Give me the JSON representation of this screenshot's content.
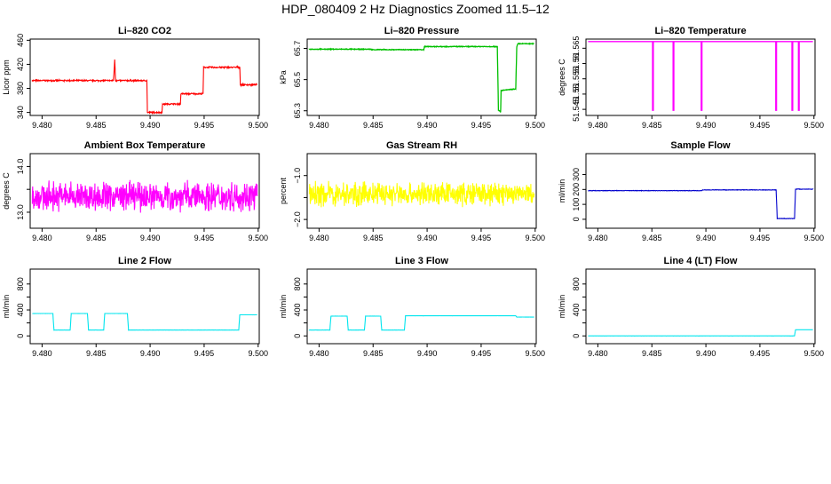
{
  "figure": {
    "title": "HDP_080409  2 Hz Diagnostics Zoomed 11.5–12"
  },
  "colors": {
    "co2": "#ff0000",
    "pressure": "#00c000",
    "temperature": "#ff00ff",
    "ambient": "#ff00ff",
    "rh": "#ffff00",
    "sample_flow": "#0000cd",
    "line_flow": "#00e5ee",
    "axis": "#000000"
  },
  "chart_data": [
    {
      "type": "line",
      "title": "Li–820 CO2",
      "xlabel": "",
      "ylabel": "Licor ppm",
      "xlim": [
        9.4789,
        9.5001
      ],
      "ylim": [
        335,
        462
      ],
      "x_ticks": [
        9.48,
        9.485,
        9.49,
        9.495,
        9.5
      ],
      "x_tick_labels": [
        "9.480",
        "9.485",
        "9.490",
        "9.495",
        "9.500"
      ],
      "y_ticks": [
        340,
        380,
        420,
        460
      ],
      "y_tick_labels": [
        "340",
        "380",
        "420",
        "460"
      ],
      "grid": false,
      "legend": "none",
      "color_key": "co2",
      "series": [
        {
          "x": [
            9.4791,
            9.4866,
            9.48668,
            9.48672,
            9.48676,
            9.4868,
            9.4869,
            9.4897,
            9.48975,
            9.4911,
            9.49115,
            9.4928,
            9.49285,
            9.4949,
            9.49495,
            9.4983,
            9.49835,
            9.4999
          ],
          "y": [
            393,
            393,
            412,
            428,
            412,
            393,
            393,
            393,
            340,
            340,
            354,
            354,
            371,
            371,
            415,
            415,
            386,
            386
          ],
          "noise": 1.5
        }
      ]
    },
    {
      "type": "line",
      "title": "Li–820 Pressure",
      "xlabel": "",
      "ylabel": "kPa",
      "xlim": [
        9.4789,
        9.5001
      ],
      "ylim": [
        65.27,
        65.76
      ],
      "x_ticks": [
        9.48,
        9.485,
        9.49,
        9.495,
        9.5
      ],
      "x_tick_labels": [
        "9.480",
        "9.485",
        "9.490",
        "9.495",
        "9.500"
      ],
      "y_ticks": [
        65.3,
        65.5,
        65.7
      ],
      "y_tick_labels": [
        "65.3",
        "65.5",
        "65.7"
      ],
      "grid": false,
      "legend": "none",
      "color_key": "pressure",
      "series": [
        {
          "x": [
            9.4791,
            9.4848,
            9.4849,
            9.4897,
            9.48975,
            9.4965,
            9.4966,
            9.4967,
            9.4968,
            9.49685,
            9.4982,
            9.4983,
            9.4984,
            9.4999
          ],
          "y": [
            65.695,
            65.695,
            65.692,
            65.692,
            65.712,
            65.712,
            65.3,
            65.3,
            65.29,
            65.43,
            65.44,
            65.71,
            65.73,
            65.73
          ],
          "noise": 0.003
        }
      ]
    },
    {
      "type": "line",
      "title": "Li–820 Temperature",
      "xlabel": "",
      "ylabel": "degrees C",
      "xlim": [
        9.4789,
        9.5001
      ],
      "ylim": [
        51.543,
        51.568
      ],
      "x_ticks": [
        9.48,
        9.485,
        9.49,
        9.495,
        9.5
      ],
      "x_tick_labels": [
        "9.480",
        "9.485",
        "9.490",
        "9.495",
        "9.500"
      ],
      "y_ticks": [
        51.545,
        51.55,
        51.555,
        51.56,
        51.565
      ],
      "y_tick_labels": [
        "51.545",
        "51.55",
        "51.555",
        "51.56",
        "51.565"
      ],
      "grid": false,
      "legend": "none",
      "color_key": "temperature",
      "series": [
        {
          "x": [
            9.4791,
            9.4999
          ],
          "y": [
            51.5672,
            51.5672
          ],
          "dips": [
            9.4851,
            9.487,
            9.4896,
            9.4965,
            9.498,
            9.4986
          ],
          "dip_to": 51.5445,
          "noise": 0
        }
      ]
    },
    {
      "type": "line",
      "title": "Ambient Box Temperature",
      "xlabel": "",
      "ylabel": "degrees C",
      "xlim": [
        9.4789,
        9.5001
      ],
      "ylim": [
        12.65,
        14.28
      ],
      "x_ticks": [
        9.48,
        9.485,
        9.49,
        9.495,
        9.5
      ],
      "x_tick_labels": [
        "9.480",
        "9.485",
        "9.490",
        "9.495",
        "9.500"
      ],
      "y_ticks": [
        13.0,
        13.5,
        14.0
      ],
      "y_tick_labels": [
        "13.0",
        "",
        "14.0"
      ],
      "grid": false,
      "legend": "none",
      "color_key": "ambient",
      "series": [
        {
          "x": [
            9.4791,
            9.4999
          ],
          "y": [
            13.35,
            13.35
          ],
          "noise": 0.38
        }
      ]
    },
    {
      "type": "line",
      "title": "Gas Stream RH",
      "xlabel": "",
      "ylabel": "percent",
      "xlim": [
        9.4789,
        9.5001
      ],
      "ylim": [
        -2.2,
        -0.5
      ],
      "x_ticks": [
        9.48,
        9.485,
        9.49,
        9.495,
        9.5
      ],
      "x_tick_labels": [
        "9.480",
        "9.485",
        "9.490",
        "9.495",
        "9.500"
      ],
      "y_ticks": [
        -2.0,
        -1.5,
        -1.0
      ],
      "y_tick_labels": [
        "−2.0",
        "",
        "−1.0"
      ],
      "grid": false,
      "legend": "none",
      "color_key": "rh",
      "series": [
        {
          "x": [
            9.4791,
            9.4999
          ],
          "y": [
            -1.42,
            -1.42
          ],
          "noise": 0.32
        }
      ]
    },
    {
      "type": "line",
      "title": "Sample Flow",
      "xlabel": "",
      "ylabel": "ml/min",
      "xlim": [
        9.4789,
        9.5001
      ],
      "ylim": [
        -60,
        440
      ],
      "x_ticks": [
        9.48,
        9.485,
        9.49,
        9.495,
        9.5
      ],
      "x_tick_labels": [
        "9.480",
        "9.485",
        "9.490",
        "9.495",
        "9.500"
      ],
      "y_ticks": [
        0,
        100,
        200,
        300
      ],
      "y_tick_labels": [
        "0",
        "100",
        "200",
        "300"
      ],
      "grid": false,
      "legend": "none",
      "color_key": "sample_flow",
      "series": [
        {
          "x": [
            9.4791,
            9.4896,
            9.4897,
            9.4965,
            9.4966,
            9.4982,
            9.4983,
            9.4999
          ],
          "y": [
            192,
            192,
            197,
            197,
            5,
            5,
            202,
            202
          ],
          "noise": 2
        }
      ]
    },
    {
      "type": "line",
      "title": "Line 2 Flow",
      "xlabel": "",
      "ylabel": "ml/min",
      "xlim": [
        9.4789,
        9.5001
      ],
      "ylim": [
        -120,
        1030
      ],
      "x_ticks": [
        9.48,
        9.485,
        9.49,
        9.495,
        9.5
      ],
      "x_tick_labels": [
        "9.480",
        "9.485",
        "9.490",
        "9.495",
        "9.500"
      ],
      "y_ticks": [
        0,
        200,
        400,
        600,
        800
      ],
      "y_tick_labels": [
        "0",
        "",
        "400",
        "",
        "800"
      ],
      "grid": false,
      "legend": "none",
      "color_key": "line_flow",
      "series": [
        {
          "x": [
            9.4791,
            9.481,
            9.4811,
            9.4826,
            9.4827,
            9.4842,
            9.4843,
            9.4857,
            9.4858,
            9.4879,
            9.488,
            9.4982,
            9.4983,
            9.4999
          ],
          "y": [
            345,
            345,
            90,
            90,
            345,
            345,
            90,
            90,
            345,
            345,
            90,
            90,
            325,
            325
          ],
          "noise": 1
        }
      ]
    },
    {
      "type": "line",
      "title": "Line 3 Flow",
      "xlabel": "",
      "ylabel": "ml/min",
      "xlim": [
        9.4789,
        9.5001
      ],
      "ylim": [
        -120,
        1030
      ],
      "x_ticks": [
        9.48,
        9.485,
        9.49,
        9.495,
        9.5
      ],
      "x_tick_labels": [
        "9.480",
        "9.485",
        "9.490",
        "9.495",
        "9.500"
      ],
      "y_ticks": [
        0,
        200,
        400,
        600,
        800
      ],
      "y_tick_labels": [
        "0",
        "",
        "400",
        "",
        "800"
      ],
      "grid": false,
      "legend": "none",
      "color_key": "line_flow",
      "series": [
        {
          "x": [
            9.4791,
            9.481,
            9.4811,
            9.4826,
            9.4827,
            9.4842,
            9.4843,
            9.4857,
            9.4858,
            9.4879,
            9.488,
            9.4982,
            9.4983,
            9.4999
          ],
          "y": [
            90,
            90,
            305,
            305,
            90,
            90,
            305,
            305,
            90,
            90,
            310,
            310,
            290,
            290
          ],
          "noise": 1
        }
      ]
    },
    {
      "type": "line",
      "title": "Line 4 (LT) Flow",
      "xlabel": "",
      "ylabel": "ml/min",
      "xlim": [
        9.4789,
        9.5001
      ],
      "ylim": [
        -120,
        1030
      ],
      "x_ticks": [
        9.48,
        9.485,
        9.49,
        9.495,
        9.5
      ],
      "x_tick_labels": [
        "9.480",
        "9.485",
        "9.490",
        "9.495",
        "9.500"
      ],
      "y_ticks": [
        0,
        200,
        400,
        600,
        800
      ],
      "y_tick_labels": [
        "0",
        "",
        "400",
        "",
        "800"
      ],
      "grid": false,
      "legend": "none",
      "color_key": "line_flow",
      "series": [
        {
          "x": [
            9.4791,
            9.4982,
            9.4983,
            9.4999
          ],
          "y": [
            0,
            0,
            95,
            95
          ],
          "noise": 0.5
        }
      ]
    }
  ]
}
